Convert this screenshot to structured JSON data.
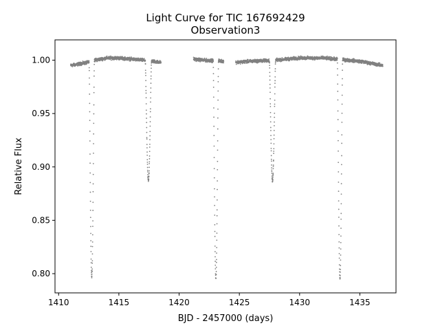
{
  "chart_data": {
    "type": "scatter",
    "title": "Light Curve for TIC 167692429",
    "subtitle": "Observation3",
    "xlabel": "BJD - 2457000 (days)",
    "ylabel": "Relative Flux",
    "xlim": [
      1409.7,
      1438.0
    ],
    "ylim": [
      0.782,
      1.019
    ],
    "xticks": [
      1410,
      1415,
      1420,
      1425,
      1430,
      1435
    ],
    "xtick_labels": [
      "1410",
      "1415",
      "1420",
      "1425",
      "1430",
      "1435"
    ],
    "yticks": [
      0.8,
      0.85,
      0.9,
      0.95,
      1.0
    ],
    "ytick_labels": [
      "0.80",
      "0.85",
      "0.90",
      "0.95",
      "1.00"
    ],
    "grid": false,
    "legend": "none",
    "marker_color": "#808080",
    "series": [
      {
        "segments": [
          {
            "start": 1411.0,
            "end": 1418.5
          },
          {
            "start": 1421.2,
            "end": 1423.7
          },
          {
            "start": 1424.7,
            "end": 1436.9
          }
        ],
        "baseline": [
          [
            1411.0,
            0.995
          ],
          [
            1412.0,
            0.997
          ],
          [
            1412.5,
            0.998
          ],
          [
            1413.0,
            1.0
          ],
          [
            1414.0,
            1.002
          ],
          [
            1415.0,
            1.002
          ],
          [
            1416.0,
            1.001
          ],
          [
            1417.0,
            1.0
          ],
          [
            1418.5,
            0.998
          ],
          [
            1421.2,
            1.001
          ],
          [
            1422.0,
            1.0
          ],
          [
            1423.7,
            0.999
          ],
          [
            1424.7,
            0.998
          ],
          [
            1426.0,
            0.999
          ],
          [
            1428.0,
            1.0
          ],
          [
            1430.0,
            1.002
          ],
          [
            1432.0,
            1.002
          ],
          [
            1433.0,
            1.001
          ],
          [
            1434.0,
            1.0
          ],
          [
            1435.0,
            0.999
          ],
          [
            1436.9,
            0.995
          ]
        ],
        "eclipses": [
          {
            "center": 1412.75,
            "half_width": 0.22,
            "min_flux": 0.797
          },
          {
            "center": 1417.45,
            "half_width": 0.26,
            "min_flux": 0.887
          },
          {
            "center": 1423.05,
            "half_width": 0.22,
            "min_flux": 0.795
          },
          {
            "center": 1427.75,
            "half_width": 0.26,
            "min_flux": 0.887
          },
          {
            "center": 1433.35,
            "half_width": 0.22,
            "min_flux": 0.795
          }
        ]
      }
    ]
  }
}
